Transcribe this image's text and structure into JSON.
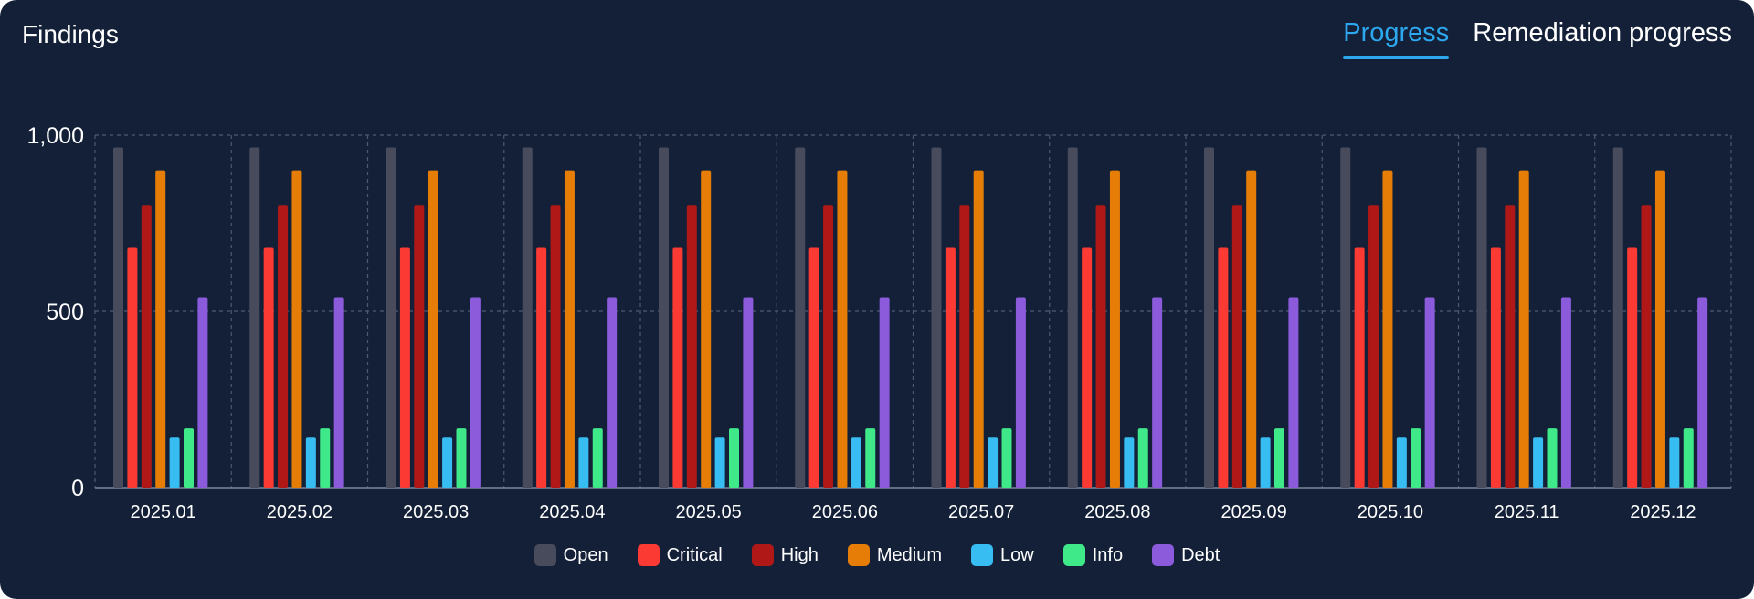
{
  "header": {
    "title": "Findings",
    "tabs": [
      {
        "label": "Progress",
        "active": true
      },
      {
        "label": "Remediation progress",
        "active": false
      }
    ],
    "accent_color": "#2da8ee"
  },
  "chart_data": {
    "type": "bar",
    "title": "",
    "xlabel": "",
    "ylabel": "",
    "ylim": [
      0,
      1000
    ],
    "yticks": [
      0,
      500,
      1000
    ],
    "ytick_labels": [
      "0",
      "500",
      "1,000"
    ],
    "grid": true,
    "legend_position": "bottom",
    "categories": [
      "2025.01",
      "2025.02",
      "2025.03",
      "2025.04",
      "2025.05",
      "2025.06",
      "2025.07",
      "2025.08",
      "2025.09",
      "2025.10",
      "2025.11",
      "2025.12"
    ],
    "series": [
      {
        "name": "Open",
        "color": "#474b5c",
        "values": [
          965,
          965,
          965,
          965,
          965,
          965,
          965,
          965,
          965,
          965,
          965,
          965
        ]
      },
      {
        "name": "Critical",
        "color": "#fb3a33",
        "values": [
          680,
          680,
          680,
          680,
          680,
          680,
          680,
          680,
          680,
          680,
          680,
          680
        ]
      },
      {
        "name": "High",
        "color": "#b01818",
        "values": [
          800,
          800,
          800,
          800,
          800,
          800,
          800,
          800,
          800,
          800,
          800,
          800
        ]
      },
      {
        "name": "Medium",
        "color": "#e57d07",
        "values": [
          900,
          900,
          900,
          900,
          900,
          900,
          900,
          900,
          900,
          900,
          900,
          900
        ]
      },
      {
        "name": "Low",
        "color": "#38bdf3",
        "values": [
          142,
          142,
          142,
          142,
          142,
          142,
          142,
          142,
          142,
          142,
          142,
          142
        ]
      },
      {
        "name": "Info",
        "color": "#3fe888",
        "values": [
          168,
          168,
          168,
          168,
          168,
          168,
          168,
          168,
          168,
          168,
          168,
          168
        ]
      },
      {
        "name": "Debt",
        "color": "#8b5bdb",
        "values": [
          540,
          540,
          540,
          540,
          540,
          540,
          540,
          540,
          540,
          540,
          540,
          540
        ]
      }
    ]
  }
}
